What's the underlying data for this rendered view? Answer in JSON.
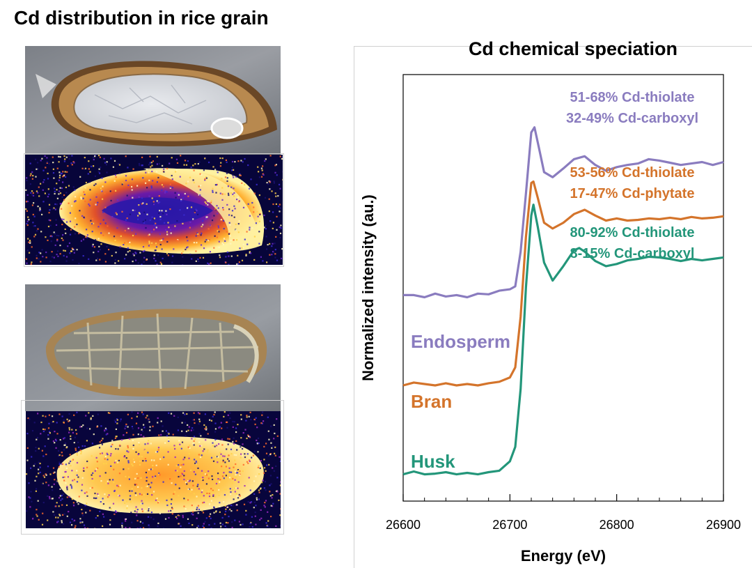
{
  "left_panel": {
    "title": "Cd distribution in rice grain"
  },
  "chart_data": {
    "type": "line",
    "title": "Cd chemical speciation",
    "xlabel": "Energy (eV)",
    "ylabel": "Normalized intensity (au.)",
    "xlim": [
      26600,
      26900
    ],
    "x_ticks": [
      "26600",
      "26700",
      "26800",
      "26900"
    ],
    "y_ticks_labeled": false,
    "grid": false,
    "series": [
      {
        "name": "Endosperm",
        "color": "#8a7cbf",
        "annotations": [
          "51-68% Cd-thiolate",
          "32-49% Cd-carboxyl"
        ],
        "points": [
          [
            26600,
            2.5
          ],
          [
            26610,
            2.5
          ],
          [
            26620,
            2.47
          ],
          [
            26630,
            2.52
          ],
          [
            26640,
            2.48
          ],
          [
            26650,
            2.5
          ],
          [
            26660,
            2.47
          ],
          [
            26670,
            2.52
          ],
          [
            26680,
            2.51
          ],
          [
            26690,
            2.56
          ],
          [
            26700,
            2.58
          ],
          [
            26705,
            2.62
          ],
          [
            26710,
            3.1
          ],
          [
            26715,
            3.9
          ],
          [
            26720,
            4.75
          ],
          [
            26723,
            4.82
          ],
          [
            26727,
            4.55
          ],
          [
            26732,
            4.2
          ],
          [
            26740,
            4.13
          ],
          [
            26750,
            4.25
          ],
          [
            26760,
            4.38
          ],
          [
            26770,
            4.42
          ],
          [
            26780,
            4.3
          ],
          [
            26790,
            4.22
          ],
          [
            26800,
            4.27
          ],
          [
            26810,
            4.3
          ],
          [
            26820,
            4.32
          ],
          [
            26830,
            4.38
          ],
          [
            26840,
            4.36
          ],
          [
            26850,
            4.33
          ],
          [
            26860,
            4.3
          ],
          [
            26870,
            4.32
          ],
          [
            26880,
            4.34
          ],
          [
            26890,
            4.3
          ],
          [
            26900,
            4.34
          ]
        ]
      },
      {
        "name": "Bran",
        "color": "#d4742b",
        "annotations": [
          "53-56% Cd-thiolate",
          "17-47% Cd-phytate"
        ],
        "points": [
          [
            26600,
            1.25
          ],
          [
            26610,
            1.29
          ],
          [
            26620,
            1.27
          ],
          [
            26630,
            1.25
          ],
          [
            26640,
            1.28
          ],
          [
            26650,
            1.25
          ],
          [
            26660,
            1.27
          ],
          [
            26670,
            1.25
          ],
          [
            26680,
            1.28
          ],
          [
            26690,
            1.3
          ],
          [
            26700,
            1.36
          ],
          [
            26705,
            1.5
          ],
          [
            26710,
            2.2
          ],
          [
            26715,
            3.3
          ],
          [
            26720,
            4.05
          ],
          [
            26722,
            4.07
          ],
          [
            26726,
            3.85
          ],
          [
            26732,
            3.5
          ],
          [
            26740,
            3.42
          ],
          [
            26750,
            3.5
          ],
          [
            26760,
            3.62
          ],
          [
            26770,
            3.68
          ],
          [
            26780,
            3.6
          ],
          [
            26790,
            3.53
          ],
          [
            26800,
            3.56
          ],
          [
            26810,
            3.53
          ],
          [
            26820,
            3.54
          ],
          [
            26830,
            3.56
          ],
          [
            26840,
            3.55
          ],
          [
            26850,
            3.57
          ],
          [
            26860,
            3.55
          ],
          [
            26870,
            3.58
          ],
          [
            26880,
            3.56
          ],
          [
            26890,
            3.57
          ],
          [
            26900,
            3.59
          ]
        ]
      },
      {
        "name": "Husk",
        "color": "#23967a",
        "annotations": [
          "80-92% Cd-thiolate",
          "8-15% Cd-carboxyl"
        ],
        "points": [
          [
            26600,
            0.02
          ],
          [
            26610,
            0.06
          ],
          [
            26620,
            0.02
          ],
          [
            26630,
            0.03
          ],
          [
            26640,
            0.05
          ],
          [
            26650,
            0.02
          ],
          [
            26660,
            0.04
          ],
          [
            26670,
            0.02
          ],
          [
            26680,
            0.05
          ],
          [
            26690,
            0.07
          ],
          [
            26700,
            0.2
          ],
          [
            26705,
            0.4
          ],
          [
            26710,
            1.2
          ],
          [
            26715,
            2.6
          ],
          [
            26720,
            3.6
          ],
          [
            26722,
            3.75
          ],
          [
            26726,
            3.45
          ],
          [
            26732,
            2.95
          ],
          [
            26740,
            2.7
          ],
          [
            26750,
            2.9
          ],
          [
            26760,
            3.12
          ],
          [
            26765,
            3.15
          ],
          [
            26770,
            3.1
          ],
          [
            26780,
            2.97
          ],
          [
            26790,
            2.9
          ],
          [
            26800,
            2.93
          ],
          [
            26810,
            2.98
          ],
          [
            26820,
            3.0
          ],
          [
            26830,
            3.03
          ],
          [
            26840,
            3.02
          ],
          [
            26850,
            3.0
          ],
          [
            26860,
            2.97
          ],
          [
            26870,
            3.0
          ],
          [
            26880,
            2.98
          ],
          [
            26890,
            3.0
          ],
          [
            26900,
            3.02
          ]
        ]
      }
    ]
  }
}
